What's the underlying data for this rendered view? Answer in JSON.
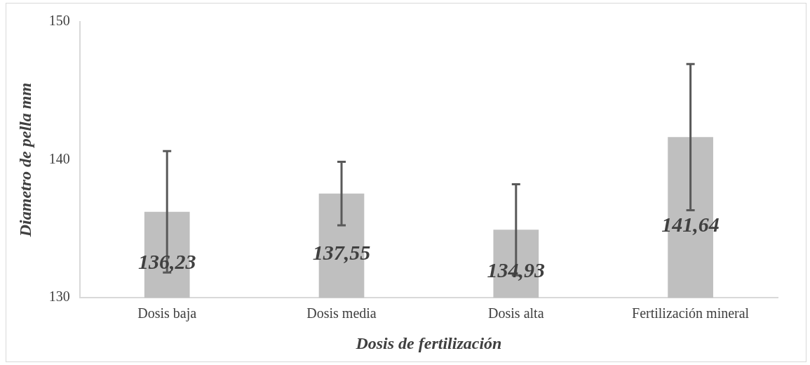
{
  "chart_data": {
    "type": "bar",
    "xlabel": "Dosis de fertilización",
    "ylabel": "Diametro de pella mm",
    "categories": [
      "Dosis baja",
      "Dosis media",
      "Dosis alta",
      "Fertilización mineral"
    ],
    "values": [
      136.23,
      137.55,
      134.93,
      141.64
    ],
    "errors": [
      4.4,
      2.3,
      3.3,
      5.3
    ],
    "value_labels": [
      "136,23",
      "137,55",
      "134,93",
      "141,64"
    ],
    "color": "#bfbfbf",
    "ylim": [
      130,
      150
    ],
    "yticks": [
      130,
      140,
      150
    ],
    "grid": false,
    "legend": false
  }
}
